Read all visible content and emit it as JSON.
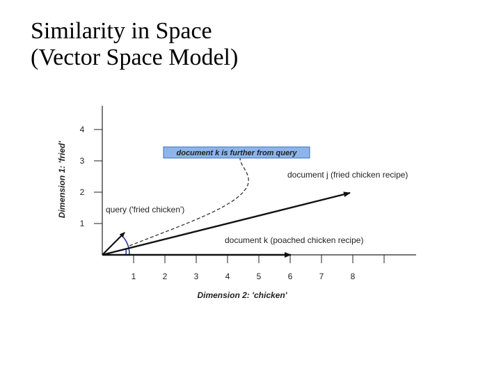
{
  "slide": {
    "title_line1": "Similarity in Space",
    "title_line2": "(Vector Space Model)"
  },
  "diagram": {
    "y_axis_title": "Dimension 1: 'fried'",
    "x_axis_title": "Dimension 2: 'chicken'",
    "y_ticks": [
      "1",
      "2",
      "3",
      "4"
    ],
    "x_ticks": [
      "1",
      "2",
      "3",
      "4",
      "5",
      "6",
      "7",
      "8"
    ],
    "vectors": {
      "query": {
        "label": "query ('fried chicken')",
        "dim2_chicken": 1,
        "dim1_fried": 1
      },
      "doc_j": {
        "label": "document j (fried chicken recipe)",
        "dim2_chicken": 8,
        "dim1_fried": 2
      },
      "doc_k": {
        "label": "document k (poached chicken recipe)",
        "dim2_chicken": 6,
        "dim1_fried": 0
      }
    },
    "note": "document k is further from query",
    "colors": {
      "note_bg": "#8fb4e8",
      "note_border": "#3a6fc4",
      "angle_arc": "#2233aa",
      "axis": "#222222",
      "vector": "#111111"
    }
  }
}
